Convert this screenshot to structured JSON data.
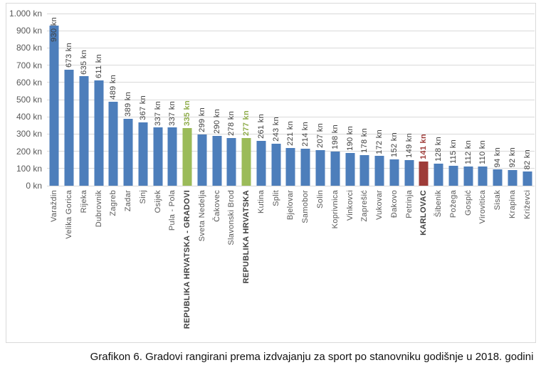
{
  "caption": "Grafikon 6. Gradovi rangirani prema izdvajanju za sport po stanovniku godišnje u 2018. godini",
  "chart_data": {
    "type": "bar",
    "title": "",
    "xlabel": "",
    "ylabel": "",
    "unit": "kn",
    "ylim": [
      0,
      1000
    ],
    "grid": true,
    "legend": false,
    "y_ticks": [
      {
        "label": "1.000 kn",
        "value": 1000
      },
      {
        "label": "900 kn",
        "value": 900
      },
      {
        "label": "800 kn",
        "value": 800
      },
      {
        "label": "700 kn",
        "value": 700
      },
      {
        "label": "600 kn",
        "value": 600
      },
      {
        "label": "500 kn",
        "value": 500
      },
      {
        "label": "400 kn",
        "value": 400
      },
      {
        "label": "300 kn",
        "value": 300
      },
      {
        "label": "200 kn",
        "value": 200
      },
      {
        "label": "100 kn",
        "value": 100
      },
      {
        "label": "0 kn",
        "value": 0
      }
    ],
    "colors": {
      "blue": "#4d7ebb",
      "green": "#9bbb59",
      "red": "#9e3b38",
      "value_text": "#404040",
      "green_text": "#8fac4b",
      "red_text": "#9e3b38",
      "axis_text": "#595959",
      "emphasis_text": "#404040",
      "gridline": "#d9d9d9"
    },
    "bars": [
      {
        "label": "Varaždin",
        "value": 930,
        "value_label": "930 kn",
        "color": "blue",
        "emphasis": false
      },
      {
        "label": "Velika Gorica",
        "value": 673,
        "value_label": "673 kn",
        "color": "blue",
        "emphasis": false
      },
      {
        "label": "Rijeka",
        "value": 635,
        "value_label": "635 kn",
        "color": "blue",
        "emphasis": false
      },
      {
        "label": "Dubrovnik",
        "value": 611,
        "value_label": "611 kn",
        "color": "blue",
        "emphasis": false
      },
      {
        "label": "Zagreb",
        "value": 489,
        "value_label": "489 kn",
        "color": "blue",
        "emphasis": false
      },
      {
        "label": "Zadar",
        "value": 389,
        "value_label": "389 kn",
        "color": "blue",
        "emphasis": false
      },
      {
        "label": "Sinj",
        "value": 367,
        "value_label": "367 kn",
        "color": "blue",
        "emphasis": false
      },
      {
        "label": "Osijek",
        "value": 337,
        "value_label": "337 kn",
        "color": "blue",
        "emphasis": false
      },
      {
        "label": "Pula - Pola",
        "value": 337,
        "value_label": "337 kn",
        "color": "blue",
        "emphasis": false
      },
      {
        "label": "REPUBLIKA HRVATSKA - GRADOVI",
        "value": 335,
        "value_label": "335 kn",
        "color": "green",
        "emphasis": true
      },
      {
        "label": "Sveta Nedelja",
        "value": 299,
        "value_label": "299 kn",
        "color": "blue",
        "emphasis": false
      },
      {
        "label": "Čakovec",
        "value": 290,
        "value_label": "290 kn",
        "color": "blue",
        "emphasis": false
      },
      {
        "label": "Slavonski Brod",
        "value": 278,
        "value_label": "278 kn",
        "color": "blue",
        "emphasis": false
      },
      {
        "label": "REPUBLIKA HRVATSKA",
        "value": 277,
        "value_label": "277 kn",
        "color": "green",
        "emphasis": true
      },
      {
        "label": "Kutina",
        "value": 261,
        "value_label": "261 kn",
        "color": "blue",
        "emphasis": false
      },
      {
        "label": "Split",
        "value": 243,
        "value_label": "243 kn",
        "color": "blue",
        "emphasis": false
      },
      {
        "label": "Bjelovar",
        "value": 221,
        "value_label": "221 kn",
        "color": "blue",
        "emphasis": false
      },
      {
        "label": "Samobor",
        "value": 214,
        "value_label": "214 kn",
        "color": "blue",
        "emphasis": false
      },
      {
        "label": "Solin",
        "value": 207,
        "value_label": "207 kn",
        "color": "blue",
        "emphasis": false
      },
      {
        "label": "Koprivnica",
        "value": 198,
        "value_label": "198 kn",
        "color": "blue",
        "emphasis": false
      },
      {
        "label": "Vinkovci",
        "value": 190,
        "value_label": "190 kn",
        "color": "blue",
        "emphasis": false
      },
      {
        "label": "Zaprešić",
        "value": 178,
        "value_label": "178 kn",
        "color": "blue",
        "emphasis": false
      },
      {
        "label": "Vukovar",
        "value": 172,
        "value_label": "172 kn",
        "color": "blue",
        "emphasis": false
      },
      {
        "label": "Đakovo",
        "value": 152,
        "value_label": "152 kn",
        "color": "blue",
        "emphasis": false
      },
      {
        "label": "Petrinja",
        "value": 149,
        "value_label": "149 kn",
        "color": "blue",
        "emphasis": false
      },
      {
        "label": "KARLOVAC",
        "value": 141,
        "value_label": "141 kn",
        "color": "red",
        "emphasis": true
      },
      {
        "label": "Šibenik",
        "value": 128,
        "value_label": "128 kn",
        "color": "blue",
        "emphasis": false
      },
      {
        "label": "Požega",
        "value": 115,
        "value_label": "115 kn",
        "color": "blue",
        "emphasis": false
      },
      {
        "label": "Gospić",
        "value": 112,
        "value_label": "112 kn",
        "color": "blue",
        "emphasis": false
      },
      {
        "label": "Virovitica",
        "value": 110,
        "value_label": "110 kn",
        "color": "blue",
        "emphasis": false
      },
      {
        "label": "Sisak",
        "value": 94,
        "value_label": "94 kn",
        "color": "blue",
        "emphasis": false
      },
      {
        "label": "Krapina",
        "value": 92,
        "value_label": "92 kn",
        "color": "blue",
        "emphasis": false
      },
      {
        "label": "Križevci",
        "value": 82,
        "value_label": "82 kn",
        "color": "blue",
        "emphasis": false
      }
    ]
  }
}
